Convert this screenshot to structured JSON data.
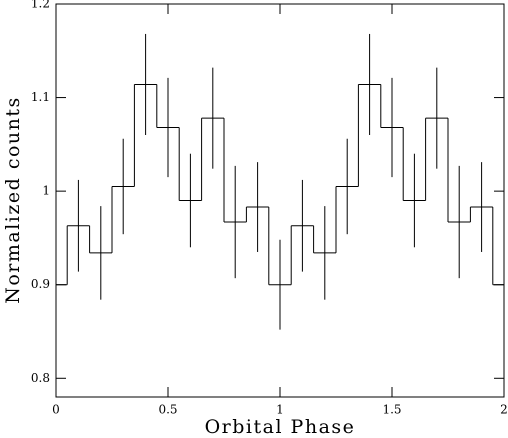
{
  "chart_data": {
    "type": "step",
    "x_label": "Orbital Phase",
    "y_label": "Normalized counts",
    "x": [
      0,
      0.1,
      0.2,
      0.3,
      0.4,
      0.5,
      0.6,
      0.7,
      0.8,
      0.9,
      1.0,
      1.1,
      1.2,
      1.3,
      1.4,
      1.5,
      1.6,
      1.7,
      1.8,
      1.9,
      2.0
    ],
    "values": [
      0.9,
      0.963,
      0.934,
      1.005,
      1.114,
      1.068,
      0.99,
      1.078,
      0.967,
      0.983,
      0.9,
      0.963,
      0.934,
      1.005,
      1.114,
      1.068,
      0.99,
      1.078,
      0.967,
      0.983,
      0.9
    ],
    "errors": [
      0.048,
      0.049,
      0.05,
      0.051,
      0.054,
      0.053,
      0.05,
      0.054,
      0.06,
      0.048,
      0.048,
      0.049,
      0.05,
      0.051,
      0.054,
      0.053,
      0.05,
      0.054,
      0.06,
      0.048,
      0.048
    ],
    "color": "#000000",
    "xlim": [
      0,
      2
    ],
    "ylim": [
      0.78,
      1.2
    ],
    "xticks": [
      0,
      0.5,
      1,
      1.5,
      2
    ],
    "yticks": [
      0.8,
      0.9,
      1,
      1.1,
      1.2
    ]
  }
}
